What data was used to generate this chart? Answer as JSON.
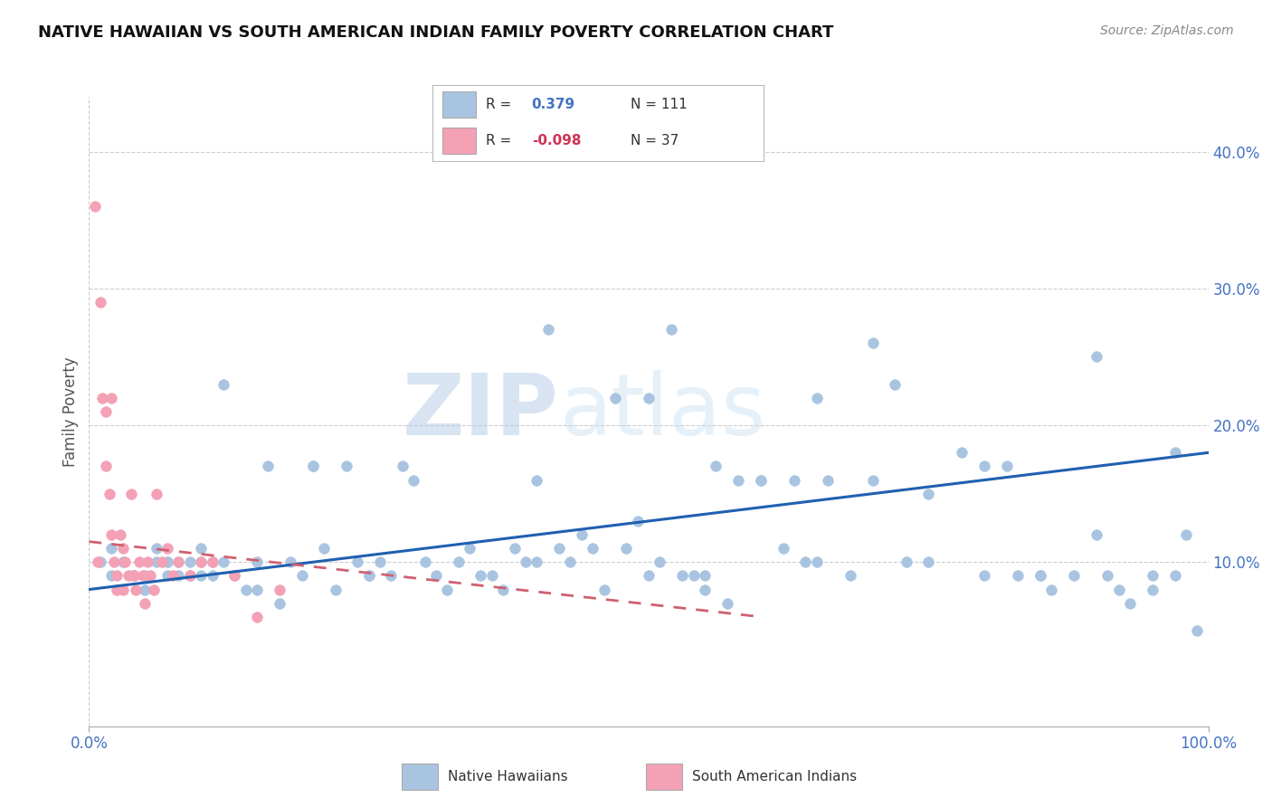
{
  "title": "NATIVE HAWAIIAN VS SOUTH AMERICAN INDIAN FAMILY POVERTY CORRELATION CHART",
  "source": "Source: ZipAtlas.com",
  "ylabel": "Family Poverty",
  "xlim": [
    0.0,
    1.0
  ],
  "ylim": [
    -0.02,
    0.44
  ],
  "r_blue": 0.379,
  "n_blue": 111,
  "r_pink": -0.098,
  "n_pink": 37,
  "watermark_zip": "ZIP",
  "watermark_atlas": "atlas",
  "blue_color": "#a8c4e0",
  "pink_color": "#f4a0b5",
  "line_blue": "#2060b0",
  "line_pink": "#d06070",
  "blue_line_start_y": 0.08,
  "blue_line_end_y": 0.18,
  "pink_line_start_y": 0.115,
  "pink_line_end_y": 0.06,
  "pink_line_x_end": 0.6,
  "blue_scatter_x": [
    0.01,
    0.02,
    0.02,
    0.03,
    0.04,
    0.05,
    0.05,
    0.06,
    0.06,
    0.07,
    0.07,
    0.08,
    0.08,
    0.09,
    0.09,
    0.1,
    0.1,
    0.11,
    0.11,
    0.12,
    0.12,
    0.13,
    0.14,
    0.15,
    0.16,
    0.17,
    0.18,
    0.19,
    0.2,
    0.21,
    0.22,
    0.23,
    0.24,
    0.25,
    0.26,
    0.27,
    0.28,
    0.29,
    0.3,
    0.31,
    0.32,
    0.33,
    0.34,
    0.35,
    0.36,
    0.37,
    0.38,
    0.39,
    0.4,
    0.41,
    0.42,
    0.43,
    0.44,
    0.45,
    0.46,
    0.47,
    0.48,
    0.49,
    0.5,
    0.51,
    0.52,
    0.53,
    0.54,
    0.55,
    0.56,
    0.57,
    0.58,
    0.6,
    0.62,
    0.63,
    0.64,
    0.65,
    0.66,
    0.68,
    0.7,
    0.72,
    0.73,
    0.75,
    0.78,
    0.8,
    0.82,
    0.83,
    0.85,
    0.86,
    0.88,
    0.9,
    0.91,
    0.92,
    0.93,
    0.95,
    0.97,
    0.98,
    0.99,
    0.04,
    0.07,
    0.1,
    0.15,
    0.2,
    0.25,
    0.4,
    0.5,
    0.55,
    0.6,
    0.65,
    0.7,
    0.75,
    0.8,
    0.85,
    0.9,
    0.95,
    0.97
  ],
  "blue_scatter_y": [
    0.1,
    0.09,
    0.11,
    0.1,
    0.09,
    0.08,
    0.09,
    0.1,
    0.11,
    0.09,
    0.1,
    0.09,
    0.1,
    0.09,
    0.1,
    0.11,
    0.1,
    0.09,
    0.1,
    0.23,
    0.1,
    0.09,
    0.08,
    0.1,
    0.17,
    0.07,
    0.1,
    0.09,
    0.17,
    0.11,
    0.08,
    0.17,
    0.1,
    0.09,
    0.1,
    0.09,
    0.17,
    0.16,
    0.1,
    0.09,
    0.08,
    0.1,
    0.11,
    0.09,
    0.09,
    0.08,
    0.11,
    0.1,
    0.16,
    0.27,
    0.11,
    0.1,
    0.12,
    0.11,
    0.08,
    0.22,
    0.11,
    0.13,
    0.22,
    0.1,
    0.27,
    0.09,
    0.09,
    0.08,
    0.17,
    0.07,
    0.16,
    0.16,
    0.11,
    0.16,
    0.1,
    0.1,
    0.16,
    0.09,
    0.26,
    0.23,
    0.1,
    0.1,
    0.18,
    0.09,
    0.17,
    0.09,
    0.09,
    0.08,
    0.09,
    0.12,
    0.09,
    0.08,
    0.07,
    0.08,
    0.09,
    0.12,
    0.05,
    0.09,
    0.1,
    0.09,
    0.08,
    0.17,
    0.09,
    0.1,
    0.09,
    0.09,
    0.16,
    0.22,
    0.16,
    0.15,
    0.17,
    0.09,
    0.25,
    0.09,
    0.18
  ],
  "pink_scatter_x": [
    0.005,
    0.008,
    0.01,
    0.012,
    0.015,
    0.015,
    0.018,
    0.02,
    0.02,
    0.022,
    0.025,
    0.025,
    0.028,
    0.03,
    0.03,
    0.032,
    0.035,
    0.038,
    0.04,
    0.042,
    0.045,
    0.048,
    0.05,
    0.052,
    0.055,
    0.058,
    0.06,
    0.065,
    0.07,
    0.075,
    0.08,
    0.09,
    0.1,
    0.11,
    0.13,
    0.15,
    0.17
  ],
  "pink_scatter_y": [
    0.36,
    0.1,
    0.29,
    0.22,
    0.21,
    0.17,
    0.15,
    0.12,
    0.22,
    0.1,
    0.09,
    0.08,
    0.12,
    0.11,
    0.08,
    0.1,
    0.09,
    0.15,
    0.09,
    0.08,
    0.1,
    0.09,
    0.07,
    0.1,
    0.09,
    0.08,
    0.15,
    0.1,
    0.11,
    0.09,
    0.1,
    0.09,
    0.1,
    0.1,
    0.09,
    0.06,
    0.08
  ]
}
